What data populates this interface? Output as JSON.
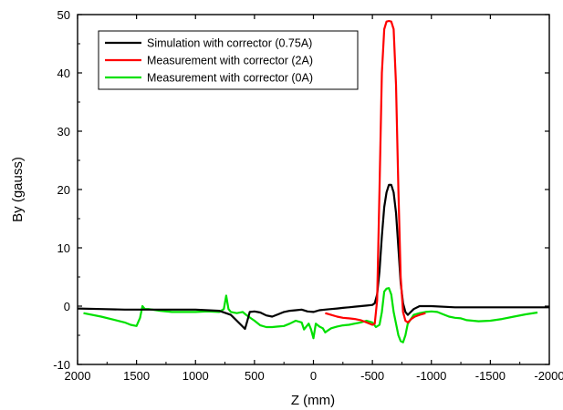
{
  "chart_data": {
    "type": "line",
    "xlabel": "Z (mm)",
    "ylabel": "By (gauss)",
    "xlim": [
      2000,
      -2000
    ],
    "ylim": [
      -10,
      50
    ],
    "x_reversed": true,
    "x_ticks": [
      2000,
      1500,
      1000,
      500,
      0,
      -500,
      -1000,
      -1500,
      -2000
    ],
    "x_tick_labels": [
      "2000",
      "1500",
      "1000",
      "500",
      "0",
      "-500",
      "-1000",
      "-1500",
      "-2000"
    ],
    "y_ticks": [
      -10,
      0,
      10,
      20,
      30,
      40,
      50
    ],
    "y_tick_labels": [
      "-10",
      "0",
      "10",
      "20",
      "30",
      "40",
      "50"
    ],
    "grid": false,
    "legend_position": "top-left",
    "series": [
      {
        "name": "Simulation with corrector (0.75A)",
        "color": "#000000",
        "x": [
          2000,
          1800,
          1600,
          1400,
          1200,
          1000,
          800,
          700,
          650,
          600,
          580,
          560,
          540,
          500,
          450,
          400,
          350,
          300,
          250,
          200,
          150,
          100,
          50,
          0,
          -50,
          -100,
          -150,
          -200,
          -250,
          -300,
          -350,
          -400,
          -450,
          -500,
          -520,
          -540,
          -560,
          -580,
          -600,
          -620,
          -640,
          -660,
          -680,
          -700,
          -720,
          -740,
          -760,
          -780,
          -800,
          -850,
          -900,
          -1000,
          -1200,
          -1400,
          -1600,
          -1800,
          -2000
        ],
        "values": [
          -0.4,
          -0.5,
          -0.6,
          -0.6,
          -0.6,
          -0.6,
          -0.8,
          -1.5,
          -2.5,
          -3.5,
          -3.9,
          -2.5,
          -1.0,
          -0.9,
          -1.1,
          -1.6,
          -1.8,
          -1.4,
          -1.0,
          -0.8,
          -0.7,
          -0.6,
          -0.9,
          -1.0,
          -0.7,
          -0.6,
          -0.5,
          -0.4,
          -0.3,
          -0.2,
          -0.1,
          0.0,
          0.1,
          0.2,
          0.5,
          2.0,
          6.0,
          12.0,
          17.0,
          19.5,
          20.8,
          20.8,
          19.5,
          16.0,
          10.0,
          4.0,
          0.5,
          -1.0,
          -1.5,
          -0.5,
          0.0,
          0.0,
          -0.2,
          -0.2,
          -0.2,
          -0.2,
          -0.2
        ]
      },
      {
        "name": "Measurement with corrector (2A)",
        "color": "#ff0000",
        "x": [
          -100,
          -150,
          -200,
          -250,
          -300,
          -350,
          -400,
          -450,
          -500,
          -520,
          -540,
          -560,
          -580,
          -600,
          -620,
          -640,
          -660,
          -680,
          -700,
          -720,
          -740,
          -760,
          -780,
          -800,
          -830,
          -860,
          -900,
          -950
        ],
        "values": [
          -1.2,
          -1.5,
          -1.8,
          -2.0,
          -2.1,
          -2.2,
          -2.4,
          -2.8,
          -3.2,
          -3.0,
          1.0,
          20.0,
          40.0,
          47.5,
          48.8,
          48.9,
          48.8,
          47.5,
          38.0,
          20.0,
          5.0,
          -1.0,
          -2.5,
          -2.8,
          -2.2,
          -1.8,
          -1.5,
          -1.2
        ]
      },
      {
        "name": "Measurement with corrector (0A)",
        "color": "#00e000",
        "x": [
          1950,
          1800,
          1700,
          1600,
          1550,
          1500,
          1470,
          1450,
          1430,
          1400,
          1300,
          1200,
          1100,
          1000,
          900,
          800,
          760,
          740,
          720,
          700,
          650,
          600,
          570,
          550,
          500,
          450,
          400,
          350,
          300,
          250,
          200,
          150,
          100,
          80,
          60,
          40,
          20,
          0,
          -20,
          -50,
          -80,
          -100,
          -120,
          -150,
          -200,
          -250,
          -300,
          -350,
          -400,
          -450,
          -500,
          -530,
          -560,
          -580,
          -600,
          -620,
          -640,
          -660,
          -680,
          -700,
          -720,
          -740,
          -760,
          -780,
          -800,
          -850,
          -900,
          -950,
          -1000,
          -1050,
          -1100,
          -1150,
          -1200,
          -1250,
          -1300,
          -1400,
          -1500,
          -1600,
          -1700,
          -1800,
          -1900
        ],
        "values": [
          -1.2,
          -1.8,
          -2.3,
          -2.8,
          -3.2,
          -3.4,
          -2.0,
          0.0,
          -0.5,
          -0.5,
          -0.8,
          -1.0,
          -1.0,
          -1.0,
          -0.9,
          -1.0,
          -0.5,
          1.8,
          -0.5,
          -1.0,
          -1.2,
          -1.0,
          -1.5,
          -1.8,
          -2.5,
          -3.3,
          -3.6,
          -3.6,
          -3.5,
          -3.4,
          -3.0,
          -2.5,
          -2.8,
          -4.0,
          -3.5,
          -3.0,
          -4.0,
          -5.5,
          -3.0,
          -3.5,
          -3.8,
          -4.5,
          -4.2,
          -3.8,
          -3.5,
          -3.3,
          -3.2,
          -3.0,
          -2.8,
          -2.5,
          -2.8,
          -3.6,
          -3.2,
          -1.0,
          2.5,
          3.0,
          3.1,
          2.0,
          -1.0,
          -3.0,
          -5.0,
          -6.0,
          -6.2,
          -5.0,
          -3.0,
          -1.5,
          -1.2,
          -1.0,
          -0.9,
          -1.0,
          -1.4,
          -1.8,
          -2.0,
          -2.1,
          -2.4,
          -2.6,
          -2.5,
          -2.2,
          -1.8,
          -1.4,
          -1.1
        ]
      }
    ],
    "legend_colors": {
      "frame": "#000000"
    }
  }
}
